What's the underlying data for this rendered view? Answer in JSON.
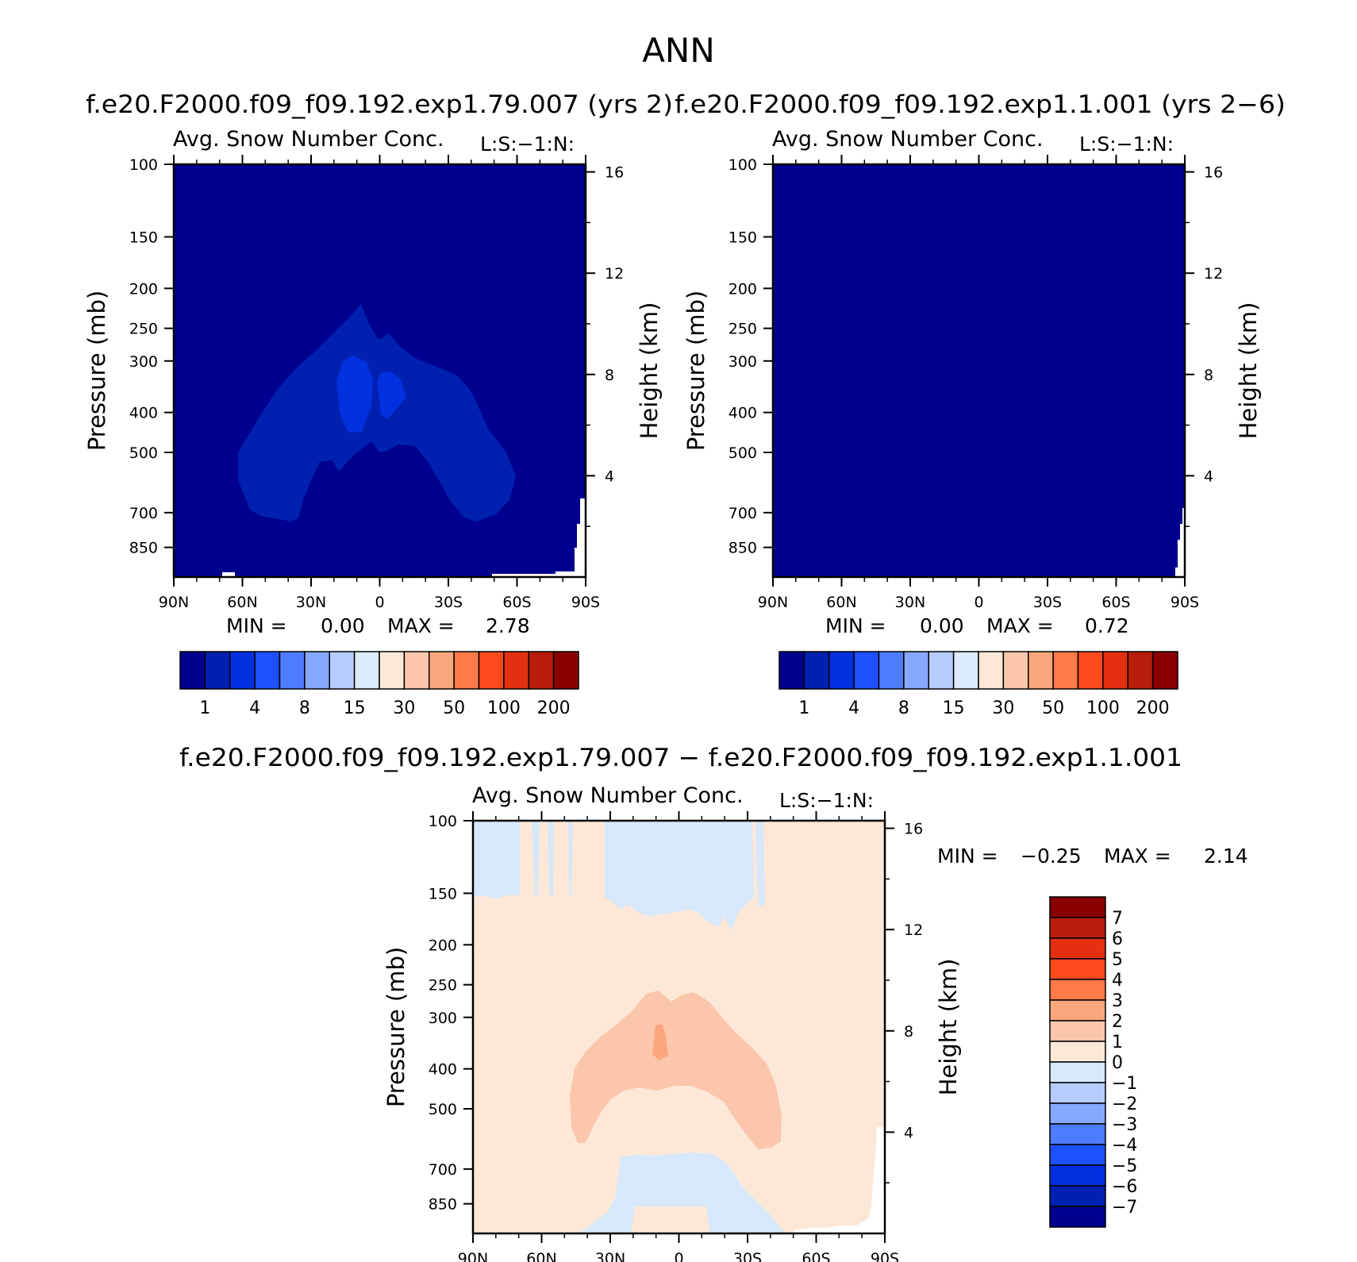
{
  "page_title": "ANN",
  "run_a_title": "f.e20.F2000.f09_f09.192.exp1.79.007 (yrs 2)",
  "run_b_title": "f.e20.F2000.f09_f09.192.exp1.1.001 (yrs 2−6)",
  "diff_title": "f.e20.F2000.f09_f09.192.exp1.79.007 − f.e20.F2000.f09_f09.192.exp1.1.001",
  "colors": {
    "seq": [
      "#00008f",
      "#0020af",
      "#0030e0",
      "#1e50ff",
      "#4e7cff",
      "#86a8ff",
      "#b6ccff",
      "#dceafd",
      "#fde8d8",
      "#fcc6ac",
      "#fca67e",
      "#ff7a46",
      "#ff4a1e",
      "#e23010",
      "#b81e0a",
      "#8a0000"
    ],
    "diff": [
      "#00008f",
      "#0020af",
      "#0030e0",
      "#1e50ff",
      "#4e7cff",
      "#86a8ff",
      "#b6ccff",
      "#d6e8fa",
      "#fde8d8",
      "#fcc6ac",
      "#fca67e",
      "#ff7a46",
      "#ff4a1e",
      "#e23010",
      "#b81e0a",
      "#8a0000"
    ]
  },
  "chart_data": [
    {
      "type": "heatmap",
      "id": "panel-a",
      "title": "Avg. Snow Number Conc.",
      "units_label": "L:S:−1:N:",
      "xlabel": "",
      "ylabel": "Pressure (mb)",
      "y2label": "Height (km)",
      "x_ticks": [
        "90N",
        "60N",
        "30N",
        "0",
        "30S",
        "60S",
        "90S"
      ],
      "y_ticks": [
        100,
        150,
        200,
        250,
        300,
        400,
        500,
        700,
        850
      ],
      "y2_ticks": [
        16,
        12,
        8,
        4
      ],
      "min_label": "MIN =",
      "min": "0.00",
      "max_label": "MAX =",
      "max": "2.78",
      "colorbar_labels": [
        "1",
        "4",
        "8",
        "15",
        "30",
        "50",
        "100",
        "200"
      ],
      "colorbar_levels": [
        0.5,
        1,
        2,
        4,
        6,
        8,
        10,
        15,
        20,
        30,
        40,
        50,
        75,
        100,
        200
      ]
    },
    {
      "type": "heatmap",
      "id": "panel-b",
      "title": "Avg. Snow Number Conc.",
      "units_label": "L:S:−1:N:",
      "xlabel": "",
      "ylabel": "Pressure (mb)",
      "y2label": "Height (km)",
      "x_ticks": [
        "90N",
        "60N",
        "30N",
        "0",
        "30S",
        "60S",
        "90S"
      ],
      "y_ticks": [
        100,
        150,
        200,
        250,
        300,
        400,
        500,
        700,
        850
      ],
      "y2_ticks": [
        16,
        12,
        8,
        4
      ],
      "min_label": "MIN =",
      "min": "0.00",
      "max_label": "MAX =",
      "max": "0.72",
      "colorbar_labels": [
        "1",
        "4",
        "8",
        "15",
        "30",
        "50",
        "100",
        "200"
      ],
      "colorbar_levels": [
        0.5,
        1,
        2,
        4,
        6,
        8,
        10,
        15,
        20,
        30,
        40,
        50,
        75,
        100,
        200
      ]
    },
    {
      "type": "heatmap",
      "id": "panel-diff",
      "title": "Avg. Snow Number Conc.",
      "units_label": "L:S:−1:N:",
      "xlabel": "",
      "ylabel": "Pressure (mb)",
      "y2label": "Height (km)",
      "x_ticks": [
        "90N",
        "60N",
        "30N",
        "0",
        "30S",
        "60S",
        "90S"
      ],
      "y_ticks": [
        100,
        150,
        200,
        250,
        300,
        400,
        500,
        700,
        850
      ],
      "y2_ticks": [
        16,
        12,
        8,
        4
      ],
      "min_label": "MIN =",
      "min": "−0.25",
      "max_label": "MAX =",
      "max": "2.14",
      "colorbar_labels": [
        "7",
        "6",
        "5",
        "4",
        "3",
        "2",
        "1",
        "0",
        "−1",
        "−2",
        "−3",
        "−4",
        "−5",
        "−6",
        "−7"
      ],
      "colorbar_levels": [
        -7,
        -6,
        -5,
        -4,
        -3,
        -2,
        -1,
        0,
        1,
        2,
        3,
        4,
        5,
        6,
        7
      ]
    }
  ]
}
